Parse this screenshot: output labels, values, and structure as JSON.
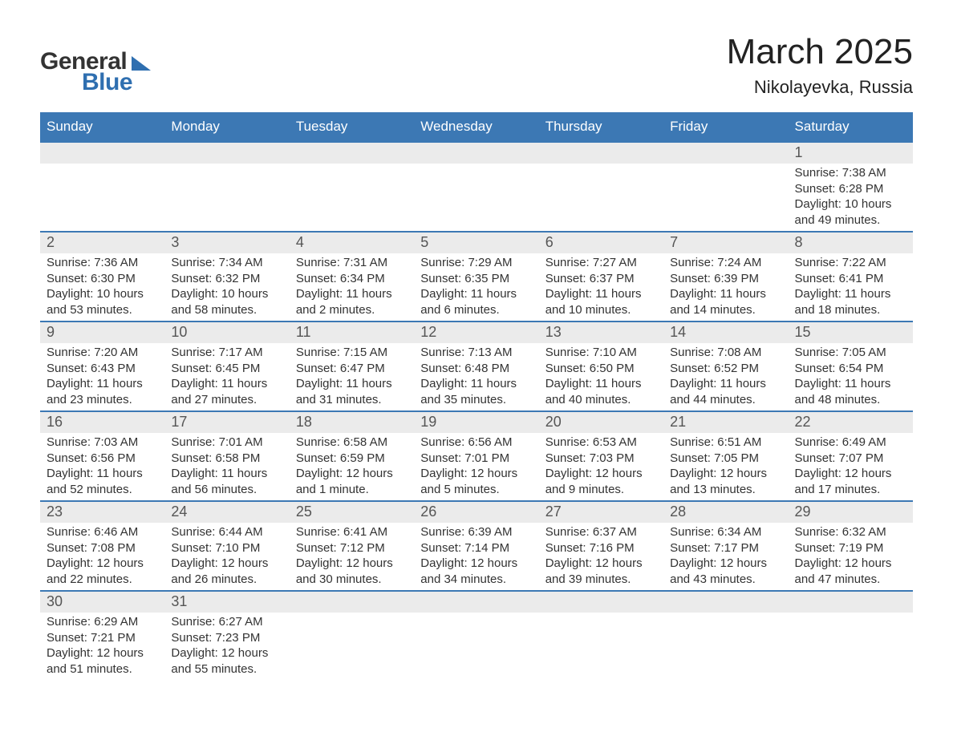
{
  "brand": {
    "word1": "General",
    "word2": "Blue"
  },
  "title": "March 2025",
  "location": "Nikolayevka, Russia",
  "dayHeaders": [
    "Sunday",
    "Monday",
    "Tuesday",
    "Wednesday",
    "Thursday",
    "Friday",
    "Saturday"
  ],
  "colors": {
    "headerBg": "#3c78b4",
    "headerText": "#ffffff",
    "dayBarBg": "#ebebeb",
    "rowBorder": "#3c78b4",
    "brandBlue": "#2f6fb0",
    "text": "#333333"
  },
  "weeks": [
    [
      null,
      null,
      null,
      null,
      null,
      null,
      {
        "n": "1",
        "sr": "Sunrise: 7:38 AM",
        "ss": "Sunset: 6:28 PM",
        "dl": "Daylight: 10 hours and 49 minutes."
      }
    ],
    [
      {
        "n": "2",
        "sr": "Sunrise: 7:36 AM",
        "ss": "Sunset: 6:30 PM",
        "dl": "Daylight: 10 hours and 53 minutes."
      },
      {
        "n": "3",
        "sr": "Sunrise: 7:34 AM",
        "ss": "Sunset: 6:32 PM",
        "dl": "Daylight: 10 hours and 58 minutes."
      },
      {
        "n": "4",
        "sr": "Sunrise: 7:31 AM",
        "ss": "Sunset: 6:34 PM",
        "dl": "Daylight: 11 hours and 2 minutes."
      },
      {
        "n": "5",
        "sr": "Sunrise: 7:29 AM",
        "ss": "Sunset: 6:35 PM",
        "dl": "Daylight: 11 hours and 6 minutes."
      },
      {
        "n": "6",
        "sr": "Sunrise: 7:27 AM",
        "ss": "Sunset: 6:37 PM",
        "dl": "Daylight: 11 hours and 10 minutes."
      },
      {
        "n": "7",
        "sr": "Sunrise: 7:24 AM",
        "ss": "Sunset: 6:39 PM",
        "dl": "Daylight: 11 hours and 14 minutes."
      },
      {
        "n": "8",
        "sr": "Sunrise: 7:22 AM",
        "ss": "Sunset: 6:41 PM",
        "dl": "Daylight: 11 hours and 18 minutes."
      }
    ],
    [
      {
        "n": "9",
        "sr": "Sunrise: 7:20 AM",
        "ss": "Sunset: 6:43 PM",
        "dl": "Daylight: 11 hours and 23 minutes."
      },
      {
        "n": "10",
        "sr": "Sunrise: 7:17 AM",
        "ss": "Sunset: 6:45 PM",
        "dl": "Daylight: 11 hours and 27 minutes."
      },
      {
        "n": "11",
        "sr": "Sunrise: 7:15 AM",
        "ss": "Sunset: 6:47 PM",
        "dl": "Daylight: 11 hours and 31 minutes."
      },
      {
        "n": "12",
        "sr": "Sunrise: 7:13 AM",
        "ss": "Sunset: 6:48 PM",
        "dl": "Daylight: 11 hours and 35 minutes."
      },
      {
        "n": "13",
        "sr": "Sunrise: 7:10 AM",
        "ss": "Sunset: 6:50 PM",
        "dl": "Daylight: 11 hours and 40 minutes."
      },
      {
        "n": "14",
        "sr": "Sunrise: 7:08 AM",
        "ss": "Sunset: 6:52 PM",
        "dl": "Daylight: 11 hours and 44 minutes."
      },
      {
        "n": "15",
        "sr": "Sunrise: 7:05 AM",
        "ss": "Sunset: 6:54 PM",
        "dl": "Daylight: 11 hours and 48 minutes."
      }
    ],
    [
      {
        "n": "16",
        "sr": "Sunrise: 7:03 AM",
        "ss": "Sunset: 6:56 PM",
        "dl": "Daylight: 11 hours and 52 minutes."
      },
      {
        "n": "17",
        "sr": "Sunrise: 7:01 AM",
        "ss": "Sunset: 6:58 PM",
        "dl": "Daylight: 11 hours and 56 minutes."
      },
      {
        "n": "18",
        "sr": "Sunrise: 6:58 AM",
        "ss": "Sunset: 6:59 PM",
        "dl": "Daylight: 12 hours and 1 minute."
      },
      {
        "n": "19",
        "sr": "Sunrise: 6:56 AM",
        "ss": "Sunset: 7:01 PM",
        "dl": "Daylight: 12 hours and 5 minutes."
      },
      {
        "n": "20",
        "sr": "Sunrise: 6:53 AM",
        "ss": "Sunset: 7:03 PM",
        "dl": "Daylight: 12 hours and 9 minutes."
      },
      {
        "n": "21",
        "sr": "Sunrise: 6:51 AM",
        "ss": "Sunset: 7:05 PM",
        "dl": "Daylight: 12 hours and 13 minutes."
      },
      {
        "n": "22",
        "sr": "Sunrise: 6:49 AM",
        "ss": "Sunset: 7:07 PM",
        "dl": "Daylight: 12 hours and 17 minutes."
      }
    ],
    [
      {
        "n": "23",
        "sr": "Sunrise: 6:46 AM",
        "ss": "Sunset: 7:08 PM",
        "dl": "Daylight: 12 hours and 22 minutes."
      },
      {
        "n": "24",
        "sr": "Sunrise: 6:44 AM",
        "ss": "Sunset: 7:10 PM",
        "dl": "Daylight: 12 hours and 26 minutes."
      },
      {
        "n": "25",
        "sr": "Sunrise: 6:41 AM",
        "ss": "Sunset: 7:12 PM",
        "dl": "Daylight: 12 hours and 30 minutes."
      },
      {
        "n": "26",
        "sr": "Sunrise: 6:39 AM",
        "ss": "Sunset: 7:14 PM",
        "dl": "Daylight: 12 hours and 34 minutes."
      },
      {
        "n": "27",
        "sr": "Sunrise: 6:37 AM",
        "ss": "Sunset: 7:16 PM",
        "dl": "Daylight: 12 hours and 39 minutes."
      },
      {
        "n": "28",
        "sr": "Sunrise: 6:34 AM",
        "ss": "Sunset: 7:17 PM",
        "dl": "Daylight: 12 hours and 43 minutes."
      },
      {
        "n": "29",
        "sr": "Sunrise: 6:32 AM",
        "ss": "Sunset: 7:19 PM",
        "dl": "Daylight: 12 hours and 47 minutes."
      }
    ],
    [
      {
        "n": "30",
        "sr": "Sunrise: 6:29 AM",
        "ss": "Sunset: 7:21 PM",
        "dl": "Daylight: 12 hours and 51 minutes."
      },
      {
        "n": "31",
        "sr": "Sunrise: 6:27 AM",
        "ss": "Sunset: 7:23 PM",
        "dl": "Daylight: 12 hours and 55 minutes."
      },
      null,
      null,
      null,
      null,
      null
    ]
  ]
}
